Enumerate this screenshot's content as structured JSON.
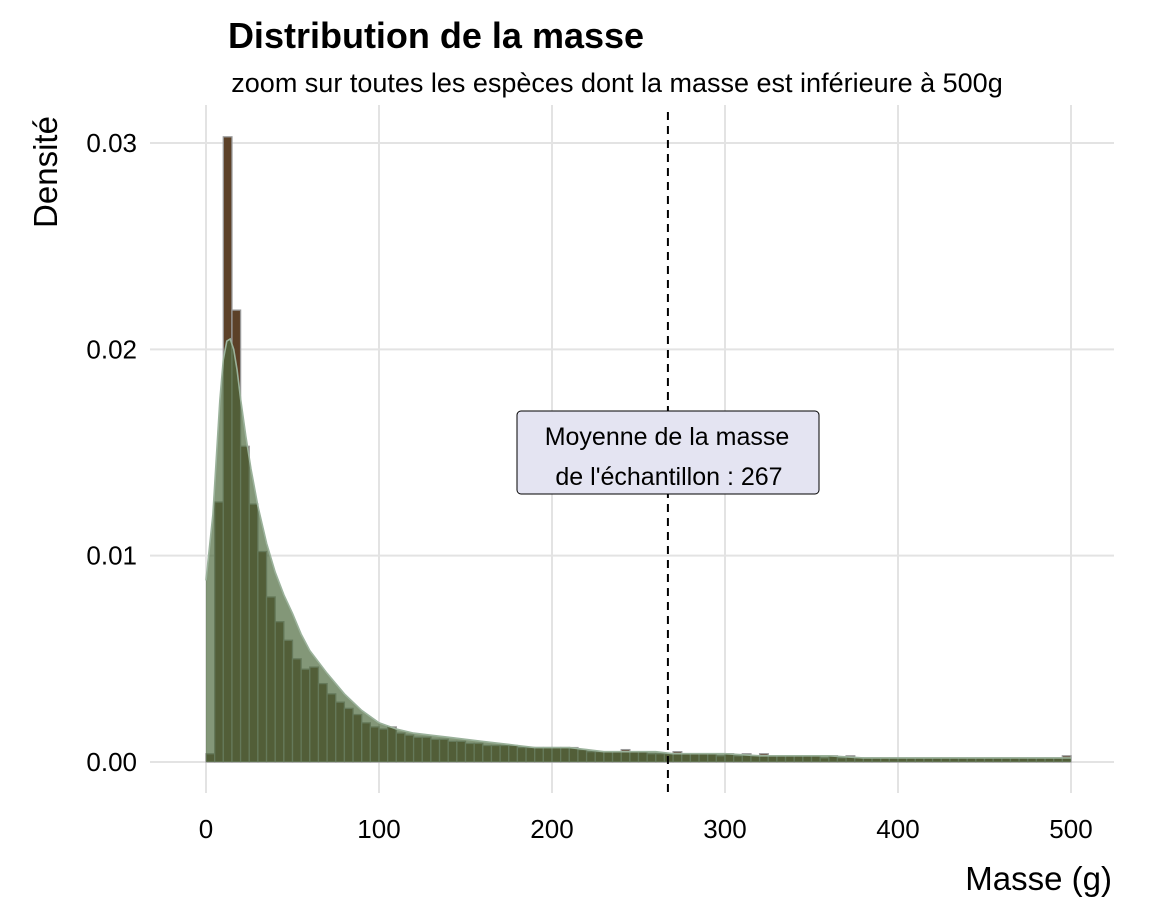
{
  "chart_data": {
    "type": "bar",
    "title": "Distribution de la masse",
    "subtitle": "zoom sur toutes les espèces dont la masse est inférieure à 500g",
    "xlabel": "Masse (g)",
    "ylabel": "Densité",
    "xlim": [
      0,
      500
    ],
    "ylim": [
      0,
      0.03
    ],
    "x_ticks": [
      0,
      100,
      200,
      300,
      400,
      500
    ],
    "y_ticks": [
      0.0,
      0.01,
      0.02,
      0.03
    ],
    "y_tick_labels": [
      "0.00",
      "0.01",
      "0.02",
      "0.03"
    ],
    "grid": true,
    "bin_width": 5,
    "bin_starts": [
      0,
      5,
      10,
      15,
      20,
      25,
      30,
      35,
      40,
      45,
      50,
      55,
      60,
      65,
      70,
      75,
      80,
      85,
      90,
      95,
      100,
      105,
      110,
      115,
      120,
      125,
      130,
      135,
      140,
      145,
      150,
      155,
      160,
      165,
      170,
      175,
      180,
      185,
      190,
      195,
      200,
      205,
      210,
      215,
      220,
      225,
      230,
      235,
      240,
      245,
      250,
      255,
      260,
      265,
      270,
      275,
      280,
      285,
      290,
      295,
      300,
      305,
      310,
      315,
      320,
      325,
      330,
      335,
      340,
      345,
      350,
      355,
      360,
      365,
      370,
      375,
      380,
      385,
      390,
      395,
      400,
      405,
      410,
      415,
      420,
      425,
      430,
      435,
      440,
      445,
      450,
      455,
      460,
      465,
      470,
      475,
      480,
      485,
      490,
      495
    ],
    "histogram_density": [
      0.0004,
      0.0126,
      0.0303,
      0.0219,
      0.0153,
      0.0125,
      0.0102,
      0.008,
      0.0068,
      0.0059,
      0.005,
      0.0045,
      0.0046,
      0.0038,
      0.0033,
      0.0029,
      0.0026,
      0.0023,
      0.0019,
      0.0017,
      0.0016,
      0.0017,
      0.0014,
      0.0013,
      0.0012,
      0.0012,
      0.0011,
      0.0011,
      0.001,
      0.001,
      0.0009,
      0.0009,
      0.0008,
      0.0008,
      0.0008,
      0.0008,
      0.0007,
      0.0007,
      0.0007,
      0.0007,
      0.0007,
      0.0007,
      0.0007,
      0.0006,
      0.0005,
      0.0005,
      0.0005,
      0.0005,
      0.0006,
      0.0005,
      0.0005,
      0.0004,
      0.0004,
      0.0004,
      0.0005,
      0.0004,
      0.0004,
      0.0004,
      0.0004,
      0.0003,
      0.0004,
      0.0003,
      0.0004,
      0.0003,
      0.0004,
      0.0003,
      0.0003,
      0.0003,
      0.0003,
      0.0003,
      0.0003,
      0.0002,
      0.0003,
      0.0002,
      0.0003,
      0.0002,
      0.0002,
      0.0002,
      0.0002,
      0.0002,
      0.0002,
      0.0002,
      0.0002,
      0.0002,
      0.0002,
      0.0002,
      0.0002,
      0.0002,
      0.0002,
      0.0002,
      0.0002,
      0.0002,
      0.0002,
      0.0002,
      0.0002,
      0.0002,
      0.0002,
      0.0002,
      0.0002,
      0.0003
    ],
    "density_curve": {
      "x": [
        0,
        4,
        8,
        10,
        12,
        14,
        16,
        18,
        20,
        23,
        26,
        30,
        35,
        40,
        45,
        50,
        55,
        60,
        70,
        80,
        90,
        100,
        110,
        120,
        130,
        140,
        150,
        160,
        170,
        180,
        190,
        200,
        210,
        220,
        230,
        240,
        250,
        260,
        270,
        280,
        290,
        300,
        320,
        340,
        360,
        380,
        400,
        420,
        440,
        460,
        480,
        500
      ],
      "y": [
        0.0088,
        0.012,
        0.0175,
        0.0195,
        0.0204,
        0.0205,
        0.02,
        0.019,
        0.0176,
        0.0158,
        0.0142,
        0.0124,
        0.0106,
        0.0092,
        0.0081,
        0.0072,
        0.0062,
        0.0054,
        0.0043,
        0.0033,
        0.0025,
        0.0019,
        0.0016,
        0.0014,
        0.0013,
        0.0012,
        0.0011,
        0.001,
        0.0009,
        0.0008,
        0.0007,
        0.0007,
        0.0007,
        0.0006,
        0.0005,
        0.0005,
        0.0005,
        0.0005,
        0.0004,
        0.0004,
        0.0004,
        0.0004,
        0.0003,
        0.0003,
        0.0003,
        0.0002,
        0.0002,
        0.0002,
        0.0002,
        0.0002,
        0.0002,
        0.0002
      ]
    },
    "mean_line": {
      "x": 267,
      "style": "dashed"
    },
    "annotation": {
      "line1": "Moyenne de la masse",
      "line2": "de l'échantillon : 267",
      "x": 267,
      "y": 0.015
    },
    "colors": {
      "bar_fill": "#5c4128",
      "bar_stroke": "#9a9a9a",
      "density_fill": "#4f6b3e",
      "density_stroke": "#9bb29b",
      "annotation_fill": "#e4e4f2",
      "grid": "#e3e3e3"
    }
  }
}
